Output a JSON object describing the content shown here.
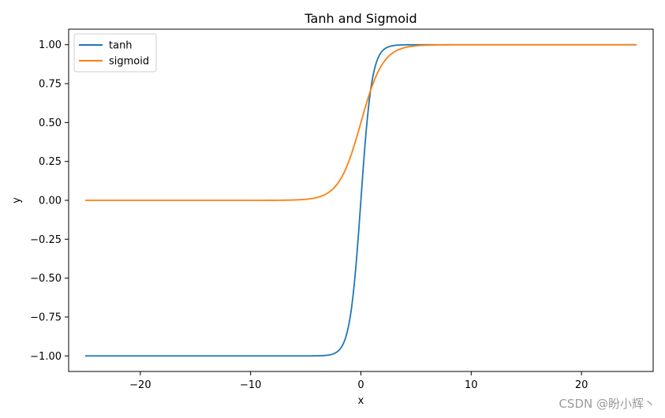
{
  "chart_data": {
    "type": "line",
    "title": "Tanh and Sigmoid",
    "xlabel": "x",
    "ylabel": "y",
    "xlim": [
      -26.5,
      26.5
    ],
    "ylim": [
      -1.1,
      1.1
    ],
    "x_ticks": [
      -20,
      -10,
      0,
      10,
      20
    ],
    "x_tick_labels": [
      "−20",
      "−10",
      "0",
      "10",
      "20"
    ],
    "y_ticks": [
      -1.0,
      -0.75,
      -0.5,
      -0.25,
      0.0,
      0.25,
      0.5,
      0.75,
      1.0
    ],
    "y_tick_labels": [
      "−1.00",
      "−0.75",
      "−0.50",
      "−0.25",
      "0.00",
      "0.25",
      "0.50",
      "0.75",
      "1.00"
    ],
    "x_range": [
      -25,
      25
    ],
    "series": [
      {
        "name": "tanh",
        "function": "tanh",
        "color": "#1f77b4"
      },
      {
        "name": "sigmoid",
        "function": "sigmoid",
        "color": "#ff7f0e"
      }
    ],
    "grid": false,
    "legend_position": "top-left"
  },
  "watermark": "CSDN @盼小辉丶"
}
